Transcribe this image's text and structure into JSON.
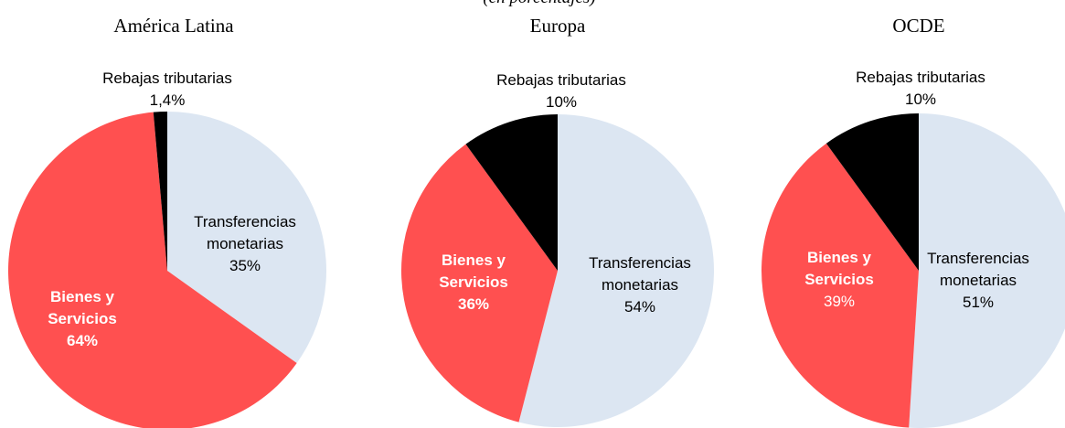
{
  "subtitle": "(en porcentajes)",
  "chart_data": [
    {
      "type": "pie",
      "title": "América Latina",
      "categories": [
        "Transferencias monetarias",
        "Bienes y Servicios",
        "Rebajas tributarias"
      ],
      "values": [
        35,
        64,
        1.4
      ],
      "value_labels": [
        "35%",
        "64%",
        "1,4%"
      ],
      "colors": [
        "#dce6f2",
        "#ff5050",
        "#000000"
      ]
    },
    {
      "type": "pie",
      "title": "Europa",
      "categories": [
        "Transferencias monetarias",
        "Bienes y Servicios",
        "Rebajas tributarias"
      ],
      "values": [
        54,
        36,
        10
      ],
      "value_labels": [
        "54%",
        "36%",
        "10%"
      ],
      "colors": [
        "#dce6f2",
        "#ff5050",
        "#000000"
      ]
    },
    {
      "type": "pie",
      "title": "OCDE",
      "categories": [
        "Transferencias monetarias",
        "Bienes y Servicios",
        "Rebajas tributarias"
      ],
      "values": [
        51,
        39,
        10
      ],
      "value_labels": [
        "51%",
        "39%",
        "10%"
      ],
      "colors": [
        "#dce6f2",
        "#ff5050",
        "#000000"
      ]
    }
  ]
}
